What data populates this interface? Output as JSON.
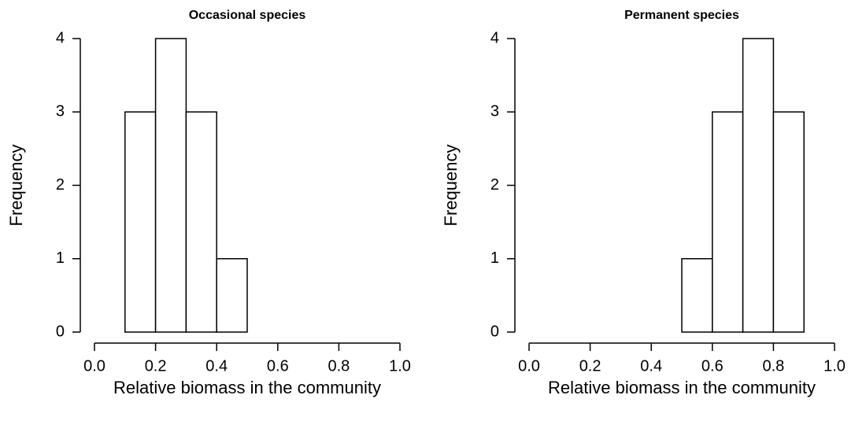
{
  "chart_data": [
    {
      "type": "histogram",
      "title": "Occasional species",
      "xlabel": "Relative biomass in the community",
      "ylabel": "Frequency",
      "bins": [
        0,
        0.1,
        0.2,
        0.3,
        0.4,
        0.5,
        0.6,
        0.7,
        0.8,
        0.9,
        1.0
      ],
      "values": [
        0,
        3,
        4,
        3,
        1,
        0,
        0,
        0,
        0,
        0
      ],
      "color": "#ffffff",
      "edgecolor": "#000000",
      "xlim": [
        0,
        1
      ],
      "ylim": [
        0,
        4
      ],
      "xticks": [
        {
          "value": 0,
          "label": "0.0"
        },
        0.2,
        0.4,
        0.6,
        0.8,
        {
          "value": 1,
          "label": "1.0"
        }
      ],
      "yticks": [
        0,
        1,
        2,
        3,
        4
      ]
    },
    {
      "type": "histogram",
      "title": "Permanent species",
      "xlabel": "Relative biomass in the community",
      "ylabel": "Frequency",
      "bins": [
        0,
        0.1,
        0.2,
        0.3,
        0.4,
        0.5,
        0.6,
        0.7,
        0.8,
        0.9,
        1.0
      ],
      "values": [
        0,
        0,
        0,
        0,
        0,
        1,
        3,
        4,
        3,
        0
      ],
      "color": "#ffffff",
      "edgecolor": "#000000",
      "xlim": [
        0,
        1
      ],
      "ylim": [
        0,
        4
      ],
      "xticks": [
        {
          "value": 0,
          "label": "0.0"
        },
        0.2,
        0.4,
        0.6,
        0.8,
        {
          "value": 1,
          "label": "1.0"
        }
      ],
      "yticks": [
        0,
        1,
        2,
        3,
        4
      ]
    }
  ]
}
